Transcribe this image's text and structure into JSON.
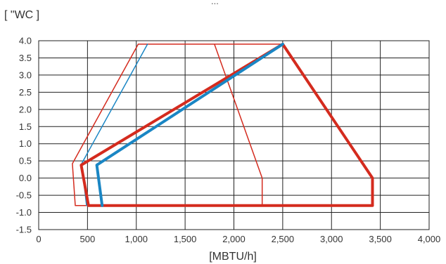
{
  "chart_data": {
    "type": "line",
    "top_caption": "...",
    "ylabel": "[ \"WC ]",
    "xlabel": "[MBTU/h]",
    "xlim": [
      0,
      4000
    ],
    "ylim": [
      -1.5,
      4.0
    ],
    "grid": true,
    "x_ticks": [
      0,
      500,
      1000,
      1500,
      2000,
      2500,
      3000,
      3500,
      4000
    ],
    "x_tick_labels": [
      "0",
      "500",
      "1,000",
      "1,500",
      "2,000",
      "2,500",
      "3,000",
      "3,500",
      "4,000"
    ],
    "y_ticks": [
      4.0,
      3.5,
      3.0,
      2.5,
      2.0,
      1.5,
      1.0,
      0.5,
      0.0,
      -0.5,
      -1.0,
      -1.5
    ],
    "y_tick_labels": [
      "4.0",
      "3.5",
      "3.0",
      "2.5",
      "2.0",
      "1.5",
      "1.0",
      "0.5",
      "0.0",
      "-0.5",
      "-1.0",
      "-1.5"
    ],
    "series": [
      {
        "color": "#d42b1e",
        "style": "thin",
        "points": [
          [
            1020,
            3.9
          ],
          [
            2500,
            3.9
          ],
          [
            2500,
            3.9
          ],
          [
            1800,
            3.9
          ],
          [
            2290,
            0.0
          ],
          [
            2290,
            -0.8
          ],
          [
            375,
            -0.8
          ],
          [
            345,
            0.42
          ],
          [
            1020,
            3.9
          ]
        ]
      },
      {
        "color": "#1a86c4",
        "style": "thin",
        "points": [
          [
            1115,
            3.9
          ],
          [
            440,
            0.42
          ],
          [
            490,
            -0.8
          ]
        ]
      },
      {
        "color": "#d42b1e",
        "style": "thick",
        "points": [
          [
            2500,
            3.9
          ],
          [
            435,
            0.38
          ],
          [
            510,
            -0.8
          ],
          [
            3420,
            -0.8
          ],
          [
            3420,
            0.0
          ],
          [
            2500,
            3.9
          ]
        ]
      },
      {
        "color": "#1a86c4",
        "style": "thick",
        "points": [
          [
            2500,
            3.9
          ],
          [
            595,
            0.38
          ],
          [
            650,
            -0.8
          ]
        ]
      }
    ]
  }
}
